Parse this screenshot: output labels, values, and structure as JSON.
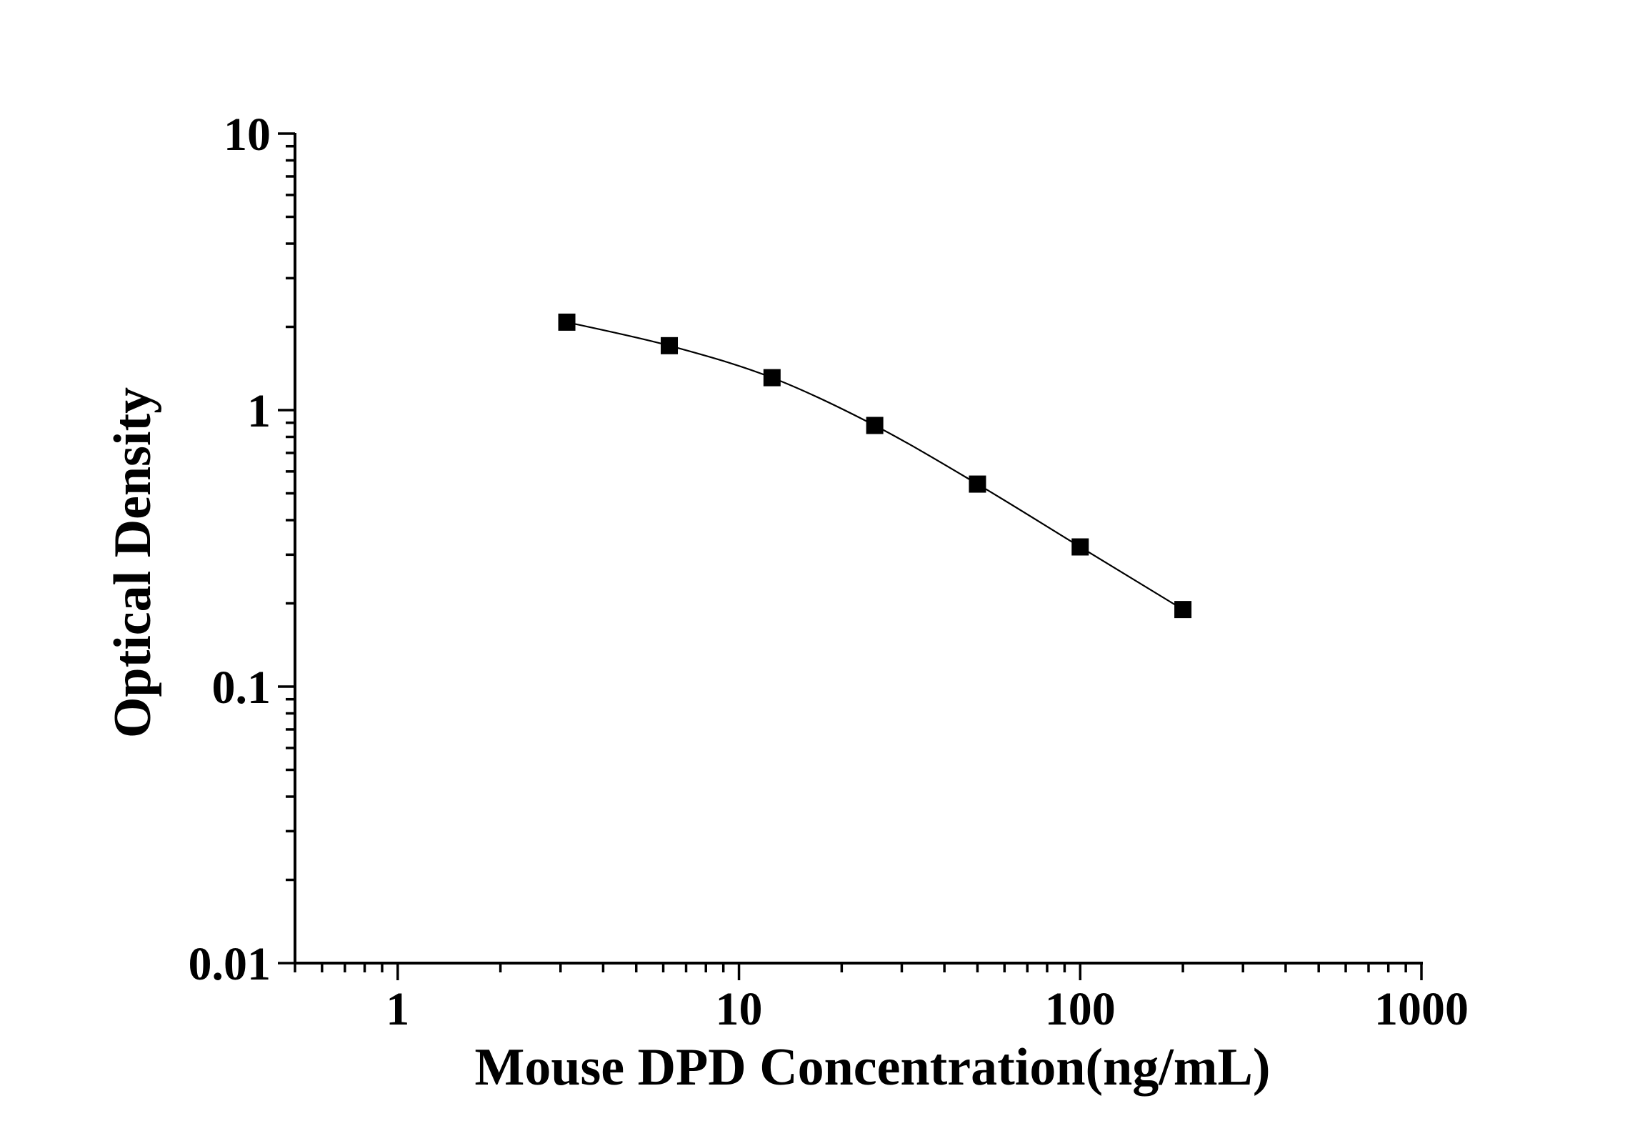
{
  "chart_data": {
    "type": "scatter",
    "title": "",
    "xlabel": "Mouse DPD Concentration(ng/mL)",
    "ylabel": "Optical Density",
    "x_scale": "log",
    "y_scale": "log",
    "xlim": [
      0.5,
      1000
    ],
    "ylim": [
      0.01,
      10
    ],
    "x_ticks": [
      1,
      10,
      100,
      1000
    ],
    "x_tick_labels": [
      "1",
      "10",
      "100",
      "1000"
    ],
    "y_ticks": [
      0.01,
      0.1,
      1,
      10
    ],
    "y_tick_labels": [
      "0.01",
      "0.1",
      "1",
      "10"
    ],
    "grid": false,
    "legend": "none",
    "series": [
      {
        "marker": "square",
        "line": "smooth",
        "color": "#000000",
        "x": [
          3.13,
          6.25,
          12.5,
          25,
          50,
          100,
          200
        ],
        "y": [
          2.08,
          1.71,
          1.31,
          0.88,
          0.54,
          0.32,
          0.19
        ]
      }
    ]
  }
}
